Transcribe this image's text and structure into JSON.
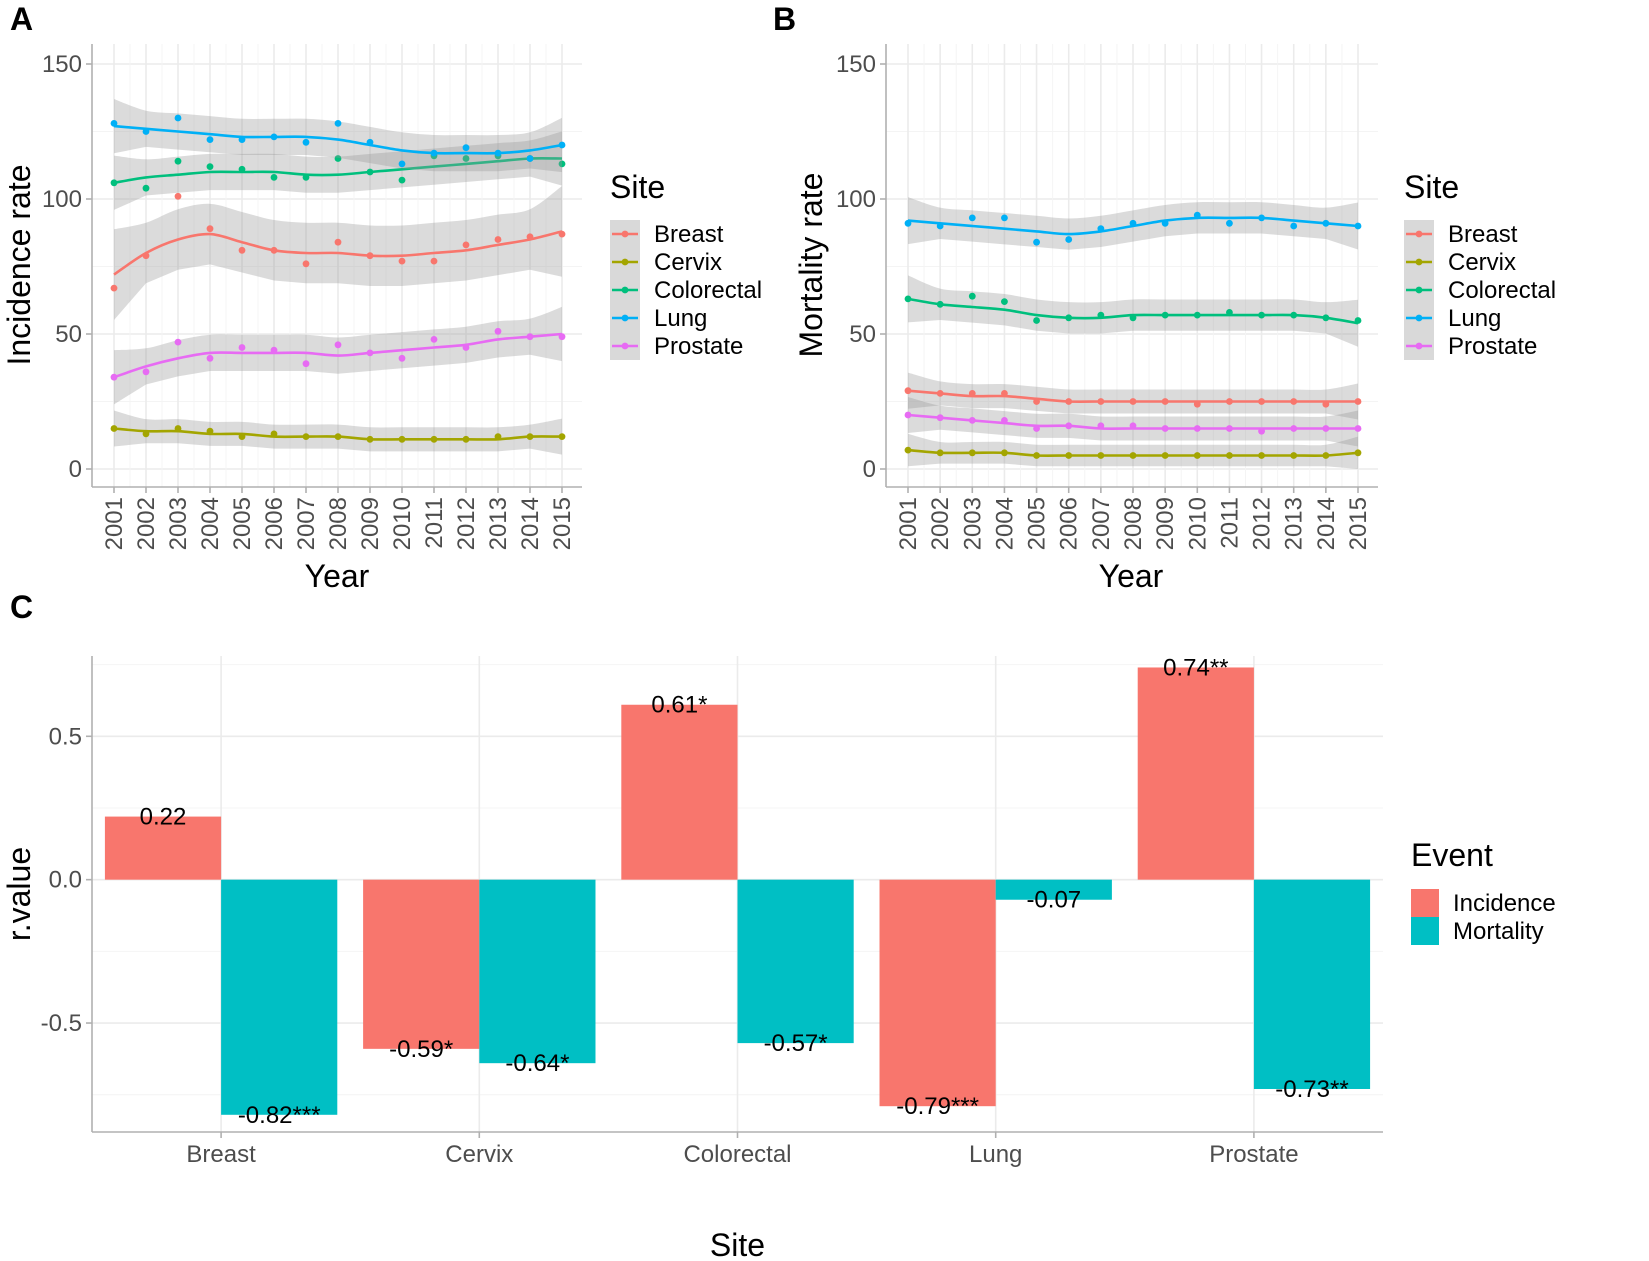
{
  "chart_data": [
    {
      "panel": "A",
      "type": "scatter",
      "x": [
        2001,
        2002,
        2003,
        2004,
        2005,
        2006,
        2007,
        2008,
        2009,
        2010,
        2011,
        2012,
        2013,
        2014,
        2015
      ],
      "xlabel": "Year",
      "ylabel": "Incidence rate",
      "ylim": [
        0,
        150
      ],
      "yticks": [
        0,
        50,
        100,
        150
      ],
      "grid": true,
      "smoothed": true,
      "legend": {
        "title": "Site",
        "position": "right"
      },
      "series": [
        {
          "name": "Breast",
          "color": "#F8766D",
          "points": [
            67,
            79,
            101,
            89,
            81,
            81,
            76,
            84,
            79,
            77,
            77,
            83,
            85,
            86,
            87
          ],
          "trend": [
            72,
            80,
            85,
            87,
            84,
            81,
            80,
            80,
            79,
            79,
            80,
            81,
            83,
            85,
            88
          ]
        },
        {
          "name": "Cervix",
          "color": "#A3A500",
          "points": [
            15,
            13,
            15,
            14,
            12,
            13,
            12,
            12,
            11,
            11,
            11,
            11,
            12,
            12,
            12
          ],
          "trend": [
            15,
            14,
            14,
            13,
            13,
            12,
            12,
            12,
            11,
            11,
            11,
            11,
            11,
            12,
            12
          ]
        },
        {
          "name": "Colorectal",
          "color": "#00BF7D",
          "points": [
            106,
            104,
            114,
            112,
            111,
            108,
            108,
            115,
            110,
            107,
            116,
            115,
            116,
            115,
            113
          ],
          "trend": [
            106,
            108,
            109,
            110,
            110,
            110,
            109,
            109,
            110,
            111,
            112,
            113,
            114,
            115,
            115
          ]
        },
        {
          "name": "Lung",
          "color": "#00B0F6",
          "points": [
            128,
            125,
            130,
            122,
            122,
            123,
            121,
            128,
            121,
            113,
            117,
            119,
            117,
            115,
            120
          ],
          "trend": [
            127,
            126,
            125,
            124,
            123,
            123,
            123,
            122,
            120,
            118,
            117,
            117,
            117,
            118,
            120
          ]
        },
        {
          "name": "Prostate",
          "color": "#E76BF3",
          "points": [
            34,
            36,
            47,
            41,
            45,
            44,
            39,
            46,
            43,
            41,
            48,
            45,
            51,
            49,
            49
          ],
          "trend": [
            34,
            38,
            41,
            43,
            43,
            43,
            43,
            42,
            43,
            44,
            45,
            46,
            48,
            49,
            50
          ]
        }
      ]
    },
    {
      "panel": "B",
      "type": "scatter",
      "x": [
        2001,
        2002,
        2003,
        2004,
        2005,
        2006,
        2007,
        2008,
        2009,
        2010,
        2011,
        2012,
        2013,
        2014,
        2015
      ],
      "xlabel": "Year",
      "ylabel": "Mortality rate",
      "ylim": [
        0,
        150
      ],
      "yticks": [
        0,
        50,
        100,
        150
      ],
      "grid": true,
      "smoothed": true,
      "legend": {
        "title": "Site",
        "position": "right"
      },
      "series": [
        {
          "name": "Breast",
          "color": "#F8766D",
          "points": [
            29,
            28,
            28,
            28,
            25,
            25,
            25,
            25,
            25,
            24,
            25,
            25,
            25,
            24,
            25
          ],
          "trend": [
            29,
            28,
            27,
            27,
            26,
            25,
            25,
            25,
            25,
            25,
            25,
            25,
            25,
            25,
            25
          ]
        },
        {
          "name": "Cervix",
          "color": "#A3A500",
          "points": [
            7,
            6,
            6,
            6,
            5,
            5,
            5,
            5,
            5,
            5,
            5,
            5,
            5,
            5,
            6
          ],
          "trend": [
            7,
            6,
            6,
            6,
            5,
            5,
            5,
            5,
            5,
            5,
            5,
            5,
            5,
            5,
            6
          ]
        },
        {
          "name": "Colorectal",
          "color": "#00BF7D",
          "points": [
            63,
            61,
            64,
            62,
            55,
            56,
            57,
            56,
            57,
            57,
            58,
            57,
            57,
            56,
            55
          ],
          "trend": [
            63,
            61,
            60,
            59,
            57,
            56,
            56,
            57,
            57,
            57,
            57,
            57,
            57,
            56,
            54
          ]
        },
        {
          "name": "Lung",
          "color": "#00B0F6",
          "points": [
            91,
            90,
            93,
            93,
            84,
            85,
            89,
            91,
            91,
            94,
            91,
            93,
            90,
            91,
            90
          ],
          "trend": [
            92,
            91,
            90,
            89,
            88,
            87,
            88,
            90,
            92,
            93,
            93,
            93,
            92,
            91,
            90
          ]
        },
        {
          "name": "Prostate",
          "color": "#E76BF3",
          "points": [
            20,
            19,
            18,
            18,
            15,
            16,
            16,
            16,
            15,
            15,
            15,
            14,
            15,
            15,
            15
          ],
          "trend": [
            20,
            19,
            18,
            17,
            16,
            16,
            15,
            15,
            15,
            15,
            15,
            15,
            15,
            15,
            15
          ]
        }
      ]
    },
    {
      "panel": "C",
      "type": "bar",
      "categories": [
        "Breast",
        "Cervix",
        "Colorectal",
        "Lung",
        "Prostate"
      ],
      "xlabel": "Site",
      "ylabel": "r.value",
      "ylim": [
        -0.88,
        0.78
      ],
      "yticks": [
        -0.5,
        0.0,
        0.5
      ],
      "ytick_labels": [
        "-0.5",
        "0.0",
        "0.5"
      ],
      "grid": true,
      "legend": {
        "title": "Event",
        "position": "right"
      },
      "series": [
        {
          "name": "Incidence",
          "color": "#F8766D",
          "values": [
            0.22,
            -0.59,
            0.61,
            -0.79,
            0.74
          ],
          "labels": [
            "0.22",
            "-0.59*",
            "0.61*",
            "-0.79***",
            "0.74**"
          ]
        },
        {
          "name": "Mortality",
          "color": "#00BFC4",
          "values": [
            -0.82,
            -0.64,
            -0.57,
            -0.07,
            -0.73
          ],
          "labels": [
            "-0.82***",
            "-0.64*",
            "-0.57*",
            "-0.07",
            "-0.73**"
          ]
        }
      ]
    }
  ]
}
